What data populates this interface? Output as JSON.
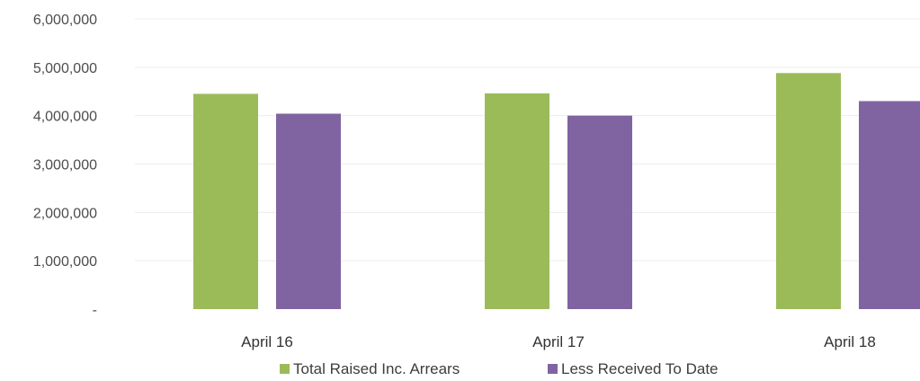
{
  "chart_data": {
    "type": "bar",
    "categories": [
      "April 16",
      "April 17",
      "April 18"
    ],
    "series": [
      {
        "name": "Total Raised Inc. Arrears",
        "color": "#9bbb59",
        "values": [
          4450000,
          4460000,
          4880000
        ]
      },
      {
        "name": "Less Received To Date",
        "color": "#8064a2",
        "values": [
          4040000,
          4000000,
          4300000
        ]
      }
    ],
    "y_ticks": [
      {
        "value": 0,
        "label": "-"
      },
      {
        "value": 1000000,
        "label": "1,000,000"
      },
      {
        "value": 2000000,
        "label": "2,000,000"
      },
      {
        "value": 3000000,
        "label": "3,000,000"
      },
      {
        "value": 4000000,
        "label": "4,000,000"
      },
      {
        "value": 5000000,
        "label": "5,000,000"
      },
      {
        "value": 6000000,
        "label": "6,000,000"
      }
    ],
    "ylim": [
      0,
      6000000
    ],
    "grid": true,
    "legend_position": "bottom"
  }
}
